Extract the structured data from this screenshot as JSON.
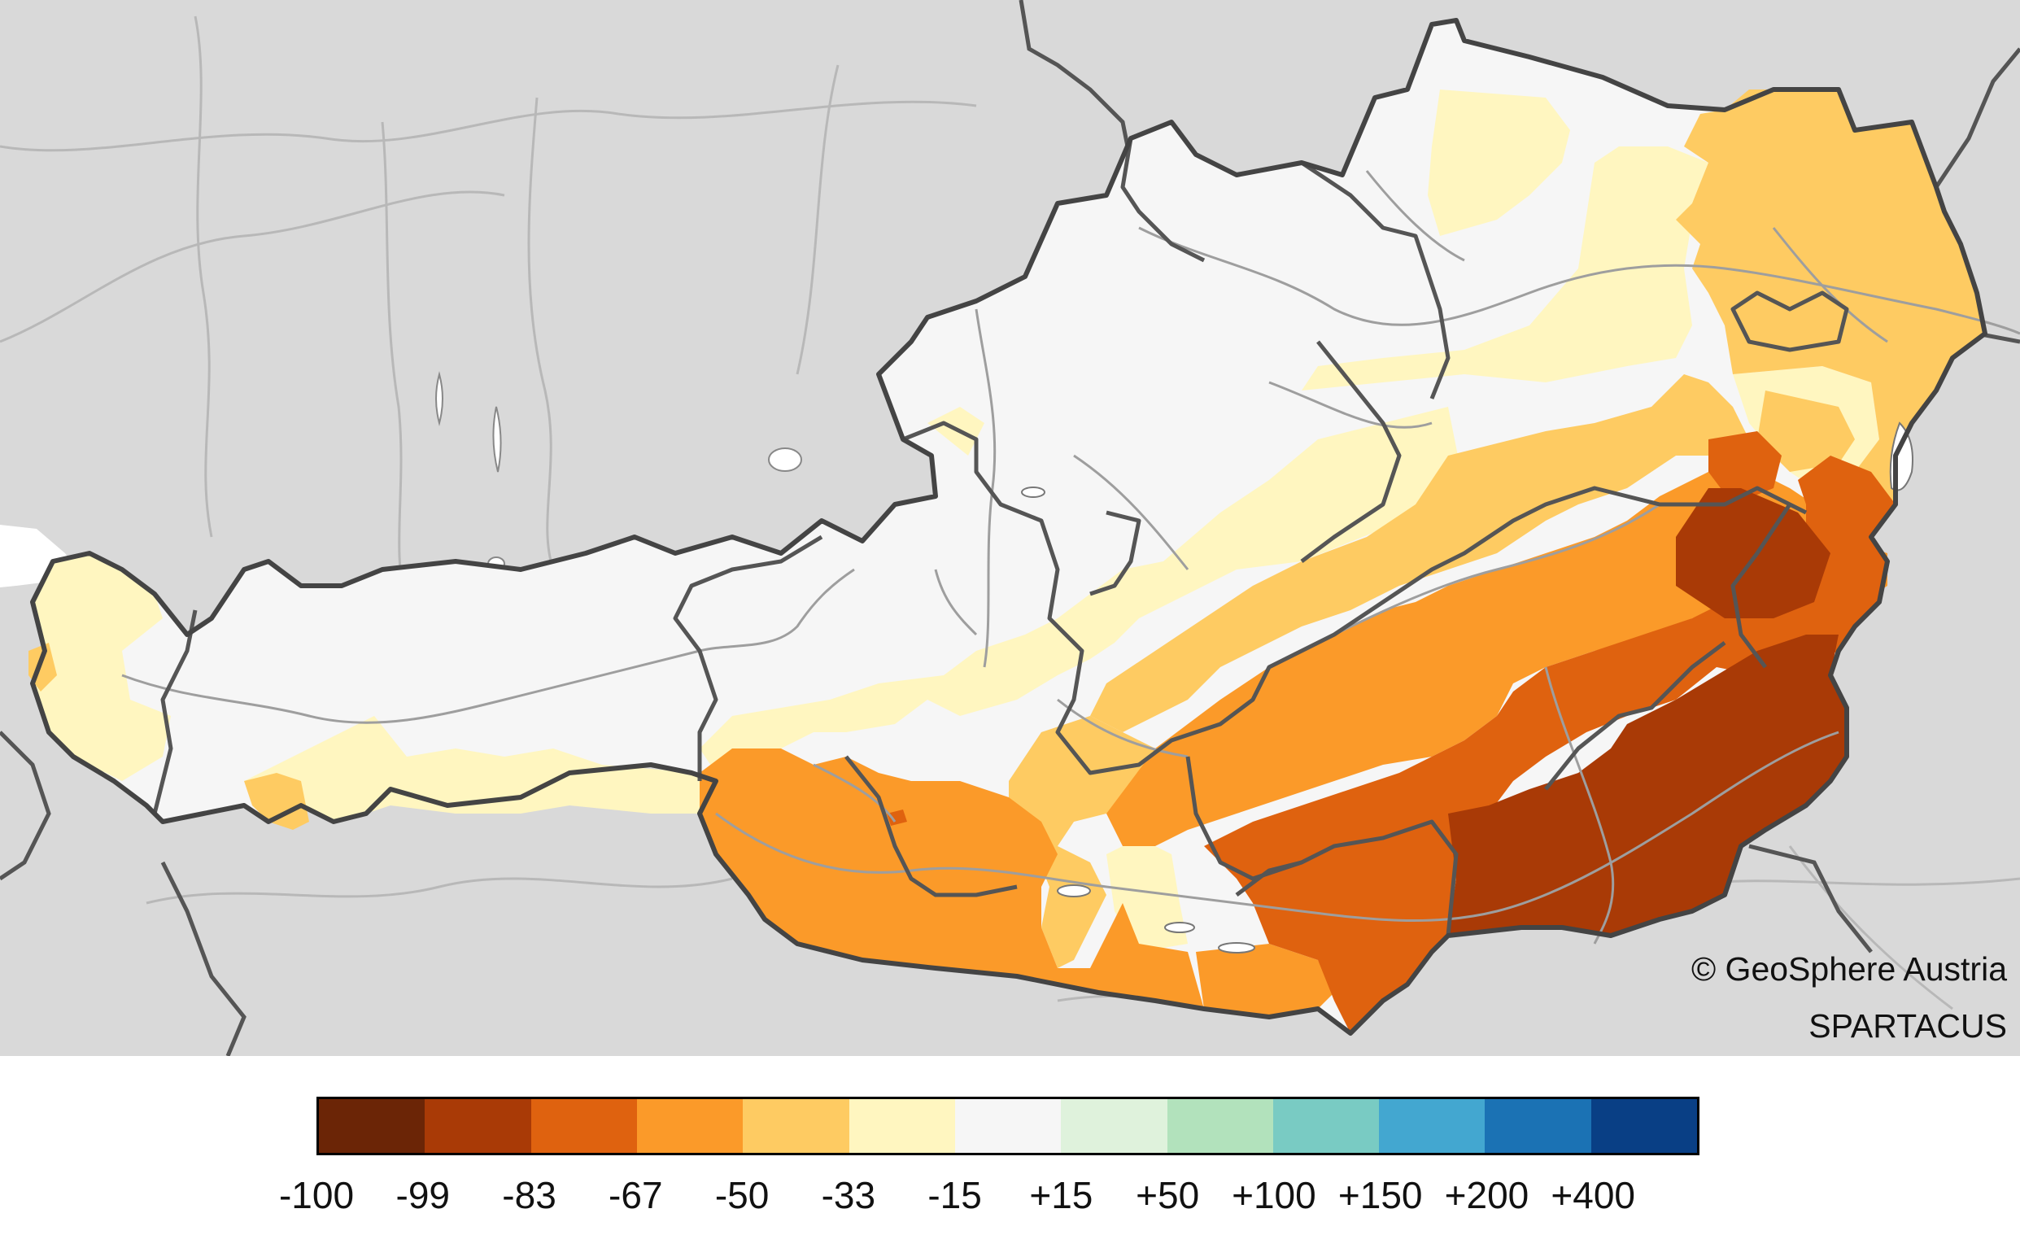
{
  "credits": {
    "copyright": "© GeoSphere Austria",
    "dataset": "SPARTACUS"
  },
  "legend": {
    "tick_labels": [
      "-100",
      "-99",
      "-83",
      "-67",
      "-50",
      "-33",
      "-15",
      "+15",
      "+50",
      "+100",
      "+150",
      "+200",
      "+400"
    ],
    "class_colors": [
      "#6b2506",
      "#a93a06",
      "#df620f",
      "#fb9a29",
      "#fecb62",
      "#fff6c0",
      "#f6f6f6",
      "#dff2dc",
      "#b2e2bc",
      "#79cbc3",
      "#43a7d0",
      "#1b72b4",
      "#093f85"
    ]
  },
  "map": {
    "colors": {
      "background_land": "#d9d9d9",
      "state_borders": "#555555",
      "rivers": "#9e9e9e",
      "lakes": "#ffffff"
    },
    "regions_shown": [
      {
        "area": "west (Vorarlberg)",
        "class": "-33"
      },
      {
        "area": "west/central Tyrol, Salzburg, Upper Austria",
        "class": "-15"
      },
      {
        "area": "northern Lower Austria (Waldviertel)",
        "class": "-33"
      },
      {
        "area": "eastern Austria (Vienna, northern Burgenland)",
        "class": "-50"
      },
      {
        "area": "Carinthia",
        "class": "-67"
      },
      {
        "area": "central Styria",
        "class": "-83"
      },
      {
        "area": "southeast Styria / southern Burgenland",
        "class": "-99"
      }
    ]
  }
}
